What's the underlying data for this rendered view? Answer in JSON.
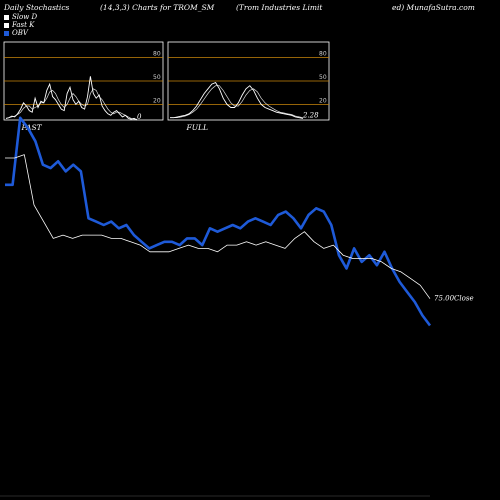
{
  "header": {
    "left": "Daily Stochastics",
    "middle": "(14,3,3) Charts for TROM_SM",
    "right1": "(Trom Industries Limit",
    "right2": "ed) MunafaSutra.com"
  },
  "legend": [
    {
      "label": "Slow D",
      "color": "#ffffff"
    },
    {
      "label": "Fast K",
      "color": "#ffffff"
    },
    {
      "label": "OBV",
      "color": "#1e5ad8"
    }
  ],
  "colors": {
    "background": "#000000",
    "obv": "#1e5ad8",
    "close": "#ffffff",
    "level_line": "#c8860a",
    "panel_border": "#ffffff"
  },
  "chart_data": [
    {
      "type": "line",
      "panel_label": "FAST",
      "end_label": "0",
      "ylim": [
        0,
        100
      ],
      "ticks": [
        20,
        50,
        80
      ],
      "series": [
        {
          "name": "Fast K",
          "values": [
            2,
            3,
            5,
            4,
            8,
            14,
            22,
            18,
            12,
            10,
            28,
            16,
            24,
            22,
            38,
            46,
            30,
            26,
            20,
            14,
            12,
            34,
            42,
            26,
            20,
            24,
            16,
            14,
            30,
            56,
            34,
            28,
            32,
            18,
            12,
            8,
            6,
            10,
            12,
            8,
            4,
            6,
            2,
            1,
            2,
            0
          ]
        },
        {
          "name": "Slow D",
          "values": [
            2,
            3,
            4,
            5,
            7,
            10,
            15,
            18,
            18,
            14,
            16,
            18,
            22,
            22,
            28,
            36,
            38,
            34,
            26,
            20,
            16,
            20,
            28,
            34,
            30,
            24,
            20,
            18,
            20,
            34,
            40,
            38,
            30,
            26,
            20,
            14,
            10,
            8,
            10,
            10,
            8,
            6,
            4,
            2,
            1,
            1
          ]
        }
      ]
    },
    {
      "type": "line",
      "panel_label": "FULL",
      "end_label": "2.28",
      "ylim": [
        0,
        100
      ],
      "ticks": [
        20,
        50,
        80
      ],
      "series": [
        {
          "name": "Fast K",
          "values": [
            3,
            3,
            4,
            5,
            6,
            8,
            12,
            18,
            26,
            34,
            40,
            46,
            48,
            40,
            28,
            20,
            16,
            16,
            22,
            32,
            40,
            44,
            38,
            28,
            20,
            16,
            14,
            12,
            10,
            9,
            8,
            7,
            6,
            4,
            3,
            2
          ]
        },
        {
          "name": "Slow D",
          "values": [
            3,
            3,
            3,
            4,
            5,
            7,
            10,
            14,
            20,
            27,
            34,
            40,
            44,
            44,
            38,
            30,
            22,
            18,
            18,
            24,
            32,
            38,
            40,
            36,
            28,
            22,
            18,
            15,
            12,
            10,
            9,
            8,
            7,
            5,
            4,
            3
          ]
        }
      ]
    },
    {
      "type": "line",
      "close_label": "75.00Close",
      "series": [
        {
          "name": "OBV",
          "values": [
            92,
            92,
            112,
            109,
            105,
            98,
            97,
            99,
            96,
            98,
            96,
            82,
            81,
            80,
            81,
            79,
            80,
            77,
            75,
            73,
            74,
            75,
            75,
            74,
            76,
            76,
            74,
            79,
            78,
            79,
            80,
            79,
            81,
            82,
            81,
            80,
            83,
            84,
            82,
            79,
            83,
            85,
            84,
            80,
            71,
            67,
            73,
            69,
            71,
            68,
            72,
            67,
            63,
            60,
            57,
            53,
            50
          ]
        },
        {
          "name": "Close",
          "values": [
            100,
            100,
            101,
            86,
            81,
            76,
            77,
            76,
            77,
            77,
            77,
            76,
            76,
            75,
            74,
            72,
            72,
            72,
            73,
            74,
            73,
            73,
            72,
            74,
            74,
            75,
            74,
            75,
            74,
            73,
            76,
            78,
            75,
            73,
            74,
            71,
            70,
            70,
            70,
            69,
            67,
            66,
            64,
            62,
            58
          ]
        }
      ]
    }
  ]
}
